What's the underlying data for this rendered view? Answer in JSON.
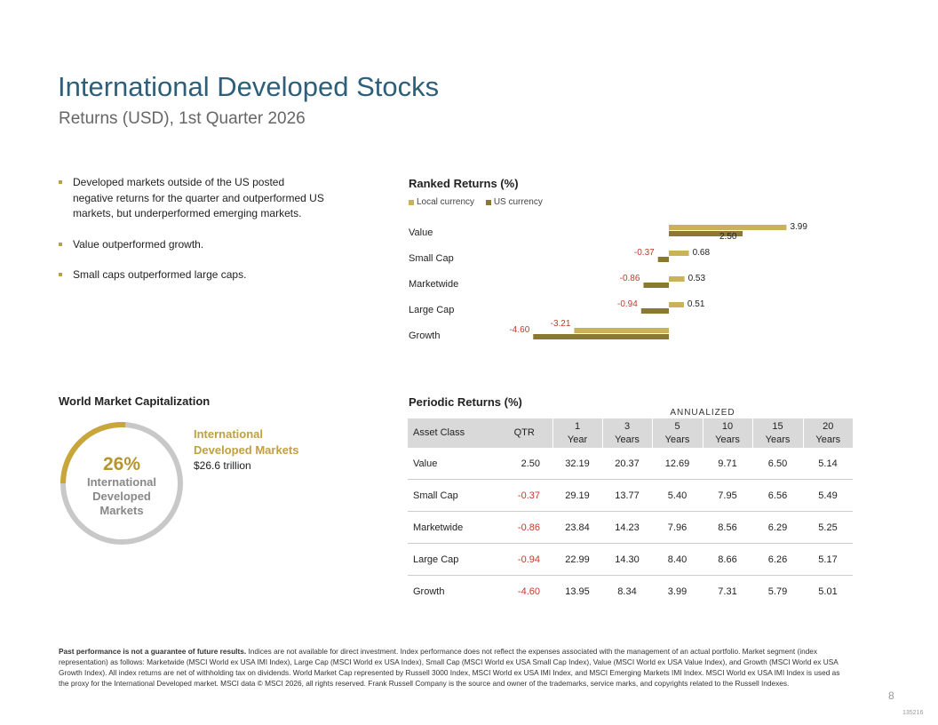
{
  "header": {
    "title": "International Developed Stocks",
    "subtitle": "Returns (USD), 1st Quarter 2026"
  },
  "bullets": [
    "Developed markets outside of the US posted negative returns for the quarter and outperformed US markets, but underperformed emerging markets.",
    "Value outperformed growth.",
    "Small caps outperformed large caps."
  ],
  "ranked_returns": {
    "title": "Ranked Returns (%)",
    "legend_local": "Local currency",
    "legend_us": "US currency"
  },
  "colors": {
    "local": "#c9b25a",
    "us": "#8a7a2f",
    "negative": "#c0392b",
    "title": "#2e5f7a",
    "donut_gold": "#c9a63a",
    "donut_gray": "#c8c8c8"
  },
  "chart_data": {
    "type": "bar",
    "orientation": "horizontal",
    "title": "Ranked Returns (%)",
    "categories": [
      "Value",
      "Small Cap",
      "Marketwide",
      "Large Cap",
      "Growth"
    ],
    "series": [
      {
        "name": "Local currency",
        "values": [
          3.99,
          0.68,
          0.53,
          0.51,
          -3.21
        ],
        "labels": [
          "3.99",
          "0.68",
          "0.53",
          "0.51",
          "-3.21"
        ]
      },
      {
        "name": "US currency",
        "values": [
          2.5,
          -0.37,
          -0.86,
          -0.94,
          -4.6
        ],
        "labels": [
          "2.50",
          "-0.37",
          "-0.86",
          "-0.94",
          "-4.60"
        ]
      }
    ],
    "xlim": [
      -4.6,
      4.6
    ],
    "legend": "top-left"
  },
  "world_cap": {
    "title": "World Market Capitalization",
    "percent": "26%",
    "percent_value": 26,
    "center_lines": [
      "International",
      "Developed",
      "Markets"
    ],
    "legend_lines": [
      "International",
      "Developed Markets"
    ],
    "legend_value": "$26.6 trillion"
  },
  "periodic": {
    "title": "Periodic Returns (%)",
    "annualized": "ANNUALIZED",
    "headers": {
      "asset": "Asset Class",
      "qtr": "QTR",
      "y1": [
        "1",
        "Year"
      ],
      "y3": [
        "3",
        "Years"
      ],
      "y5": [
        "5",
        "Years"
      ],
      "y10": [
        "10",
        "Years"
      ],
      "y15": [
        "15",
        "Years"
      ],
      "y20": [
        "20",
        "Years"
      ]
    },
    "rows": [
      {
        "asset": "Value",
        "qtr": "2.50",
        "y1": "32.19",
        "y3": "20.37",
        "y5": "12.69",
        "y10": "9.71",
        "y15": "6.50",
        "y20": "5.14"
      },
      {
        "asset": "Small Cap",
        "qtr": "-0.37",
        "y1": "29.19",
        "y3": "13.77",
        "y5": "5.40",
        "y10": "7.95",
        "y15": "6.56",
        "y20": "5.49"
      },
      {
        "asset": "Marketwide",
        "qtr": "-0.86",
        "y1": "23.84",
        "y3": "14.23",
        "y5": "7.96",
        "y10": "8.56",
        "y15": "6.29",
        "y20": "5.25"
      },
      {
        "asset": "Large Cap",
        "qtr": "-0.94",
        "y1": "22.99",
        "y3": "14.30",
        "y5": "8.40",
        "y10": "8.66",
        "y15": "6.26",
        "y20": "5.17"
      },
      {
        "asset": "Growth",
        "qtr": "-4.60",
        "y1": "13.95",
        "y3": "8.34",
        "y5": "3.99",
        "y10": "7.31",
        "y15": "5.79",
        "y20": "5.01"
      }
    ]
  },
  "footnote": {
    "bold": "Past performance is not a guarantee of future results.",
    "text": " Indices are not available for direct investment. Index performance does not reflect the expenses associated with the management of an actual portfolio. Market segment (index representation) as follows: Marketwide (MSCI World ex USA IMI Index), Large Cap (MSCI World ex USA Index), Small Cap (MSCI World ex USA Small Cap Index), Value (MSCI World ex USA Value Index), and Growth (MSCI World ex USA Growth Index). All index returns are net of withholding tax on dividends. World Market Cap represented by Russell 3000 Index, MSCI World ex USA IMI Index, and MSCI Emerging Markets IMI Index. MSCI World ex USA IMI Index is used as the proxy for the International Developed market. MSCI data © MSCI 2026, all rights reserved. Frank Russell Company is the source and owner of the trademarks, service marks, and copyrights related to the Russell Indexes."
  },
  "page_number": "8",
  "doc_code": "135216"
}
